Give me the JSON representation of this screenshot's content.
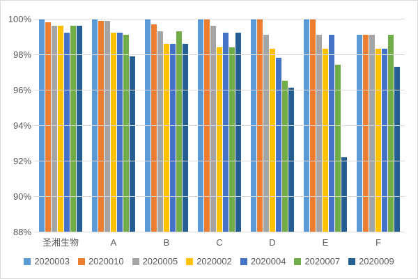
{
  "chart_data": {
    "type": "bar",
    "title": "",
    "xlabel": "",
    "ylabel": "",
    "categories": [
      "圣湘生物",
      "A",
      "B",
      "C",
      "D",
      "E",
      "F"
    ],
    "series": [
      {
        "name": "2020003",
        "color": "#5B9BD5",
        "values": [
          100,
          100,
          100,
          100,
          100,
          100,
          99.1
        ]
      },
      {
        "name": "2020010",
        "color": "#ED7D31",
        "values": [
          99.8,
          99.9,
          99.7,
          100,
          100,
          100,
          99.1
        ]
      },
      {
        "name": "2020005",
        "color": "#A5A5A5",
        "values": [
          99.6,
          99.9,
          99.3,
          99.6,
          99.1,
          99.1,
          99.1
        ]
      },
      {
        "name": "2020002",
        "color": "#FFC000",
        "values": [
          99.6,
          99.2,
          98.6,
          98.4,
          98.3,
          98.3,
          98.3
        ]
      },
      {
        "name": "2020004",
        "color": "#4472C4",
        "values": [
          99.2,
          99.2,
          98.6,
          99.2,
          97.8,
          99.1,
          98.3
        ]
      },
      {
        "name": "2020007",
        "color": "#70AD47",
        "values": [
          99.6,
          99.1,
          99.3,
          98.4,
          96.5,
          97.4,
          99.1
        ]
      },
      {
        "name": "2020009",
        "color": "#255E91",
        "values": [
          99.6,
          97.9,
          98.6,
          99.2,
          96.1,
          92.2,
          97.3
        ]
      }
    ],
    "ylim": [
      88,
      100
    ],
    "ytick_step": 2,
    "yticks": [
      "100%",
      "98%",
      "96%",
      "94%",
      "92%",
      "90%",
      "88%"
    ],
    "grid": true,
    "legend_position": "bottom"
  },
  "colors": {
    "background": "#FFFFFF",
    "frame_border": "#D9D9D9",
    "gridline": "#D9D9D9",
    "axis_line": "#BFBFBF",
    "text": "#595959"
  }
}
